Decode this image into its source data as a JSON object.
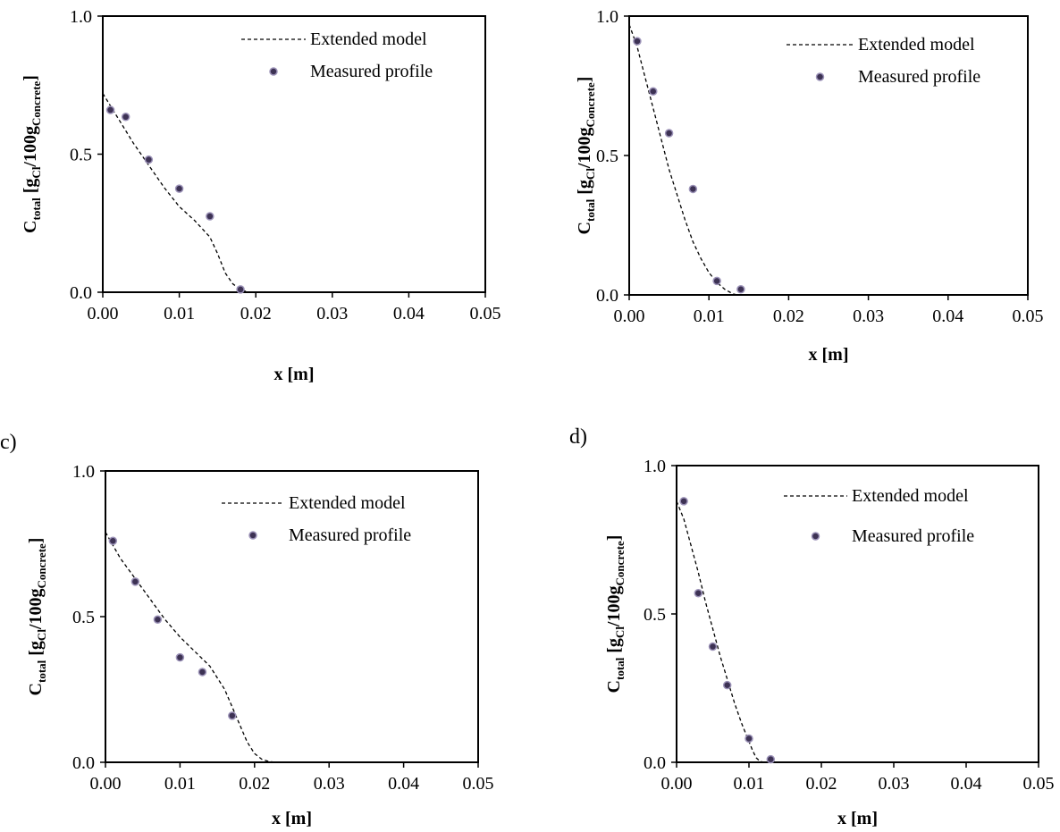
{
  "chart_data": [
    {
      "type": "scatter",
      "panel_label": "",
      "xlabel": "x [m]",
      "ylabel": {
        "c": "C",
        "c_sub": "total",
        "open": " [g",
        "cl_sub": "Cl",
        "mid": "/100g",
        "conc_sub": "Concrete",
        "close": "]"
      },
      "xlim": [
        0,
        0.05
      ],
      "ylim": [
        0,
        1.0
      ],
      "xticks": [
        "0.00",
        "0.01",
        "0.02",
        "0.03",
        "0.04",
        "0.05"
      ],
      "yticks": [
        "0.0",
        "0.5",
        "1.0"
      ],
      "legend": [
        "Extended model",
        "Measured profile"
      ],
      "legend_position": "top-right",
      "grid": false,
      "series": [
        {
          "name": "Extended model",
          "style": "dashed-line",
          "x": [
            0,
            0.002,
            0.004,
            0.006,
            0.008,
            0.01,
            0.012,
            0.014,
            0.015,
            0.016,
            0.017,
            0.018,
            0.019
          ],
          "y": [
            0.72,
            0.63,
            0.54,
            0.46,
            0.38,
            0.31,
            0.26,
            0.2,
            0.14,
            0.07,
            0.03,
            0.01,
            0.0
          ]
        },
        {
          "name": "Measured profile",
          "style": "marker",
          "x": [
            0.001,
            0.003,
            0.006,
            0.01,
            0.014,
            0.018
          ],
          "y": [
            0.66,
            0.635,
            0.48,
            0.375,
            0.275,
            0.01
          ]
        }
      ]
    },
    {
      "type": "scatter",
      "panel_label": "",
      "xlabel": "x [m]",
      "ylabel": {
        "c": "C",
        "c_sub": "total",
        "open": " [g",
        "cl_sub": "Cl",
        "mid": "/100g",
        "conc_sub": "Concrete",
        "close": "]"
      },
      "xlim": [
        0,
        0.05
      ],
      "ylim": [
        0,
        1.0
      ],
      "xticks": [
        "0.00",
        "0.01",
        "0.02",
        "0.03",
        "0.04",
        "0.05"
      ],
      "yticks": [
        "0.0",
        "0.5",
        "1.0"
      ],
      "legend": [
        "Extended model",
        "Measured profile"
      ],
      "legend_position": "top-right",
      "grid": false,
      "series": [
        {
          "name": "Extended model",
          "style": "dashed-line",
          "x": [
            0,
            0.001,
            0.002,
            0.003,
            0.004,
            0.005,
            0.006,
            0.007,
            0.008,
            0.009,
            0.01,
            0.011,
            0.012,
            0.013,
            0.0135
          ],
          "y": [
            0.97,
            0.89,
            0.78,
            0.67,
            0.56,
            0.45,
            0.36,
            0.27,
            0.19,
            0.13,
            0.08,
            0.045,
            0.02,
            0.004,
            0.0
          ]
        },
        {
          "name": "Measured profile",
          "style": "marker",
          "x": [
            0.001,
            0.003,
            0.005,
            0.008,
            0.011,
            0.014
          ],
          "y": [
            0.91,
            0.73,
            0.58,
            0.38,
            0.05,
            0.02
          ]
        }
      ]
    },
    {
      "type": "scatter",
      "panel_label": "c)",
      "xlabel": "x [m]",
      "ylabel": {
        "c": "C",
        "c_sub": "total",
        "open": " [g",
        "cl_sub": "Cl",
        "mid": "/100g",
        "conc_sub": "Concrete",
        "close": "]"
      },
      "xlim": [
        0,
        0.05
      ],
      "ylim": [
        0,
        1.0
      ],
      "xticks": [
        "0.00",
        "0.01",
        "0.02",
        "0.03",
        "0.04",
        "0.05"
      ],
      "yticks": [
        "0.0",
        "0.5",
        "1.0"
      ],
      "legend": [
        "Extended model",
        "Measured profile"
      ],
      "legend_position": "top-right",
      "grid": false,
      "series": [
        {
          "name": "Extended model",
          "style": "dashed-line",
          "x": [
            0,
            0.002,
            0.004,
            0.006,
            0.008,
            0.01,
            0.012,
            0.014,
            0.016,
            0.017,
            0.018,
            0.019,
            0.02,
            0.021,
            0.022,
            0.023
          ],
          "y": [
            0.79,
            0.7,
            0.63,
            0.56,
            0.49,
            0.43,
            0.38,
            0.33,
            0.25,
            0.19,
            0.13,
            0.07,
            0.03,
            0.01,
            0.002,
            0.0
          ]
        },
        {
          "name": "Measured profile",
          "style": "marker",
          "x": [
            0.001,
            0.004,
            0.007,
            0.01,
            0.013,
            0.017
          ],
          "y": [
            0.76,
            0.62,
            0.49,
            0.36,
            0.31,
            0.16
          ]
        }
      ]
    },
    {
      "type": "scatter",
      "panel_label": "d)",
      "xlabel": "x [m]",
      "ylabel": {
        "c": "C",
        "c_sub": "total",
        "open": " [g",
        "cl_sub": "Cl",
        "mid": "/100g",
        "conc_sub": "Concrete",
        "close": "]"
      },
      "xlim": [
        0,
        0.05
      ],
      "ylim": [
        0,
        1.0
      ],
      "xticks": [
        "0.00",
        "0.01",
        "0.02",
        "0.03",
        "0.04",
        "0.05"
      ],
      "yticks": [
        "0.0",
        "0.5",
        "1.0"
      ],
      "legend": [
        "Extended model",
        "Measured profile"
      ],
      "legend_position": "top-right",
      "grid": false,
      "series": [
        {
          "name": "Extended model",
          "style": "dashed-line",
          "x": [
            0,
            0.001,
            0.002,
            0.003,
            0.004,
            0.005,
            0.006,
            0.007,
            0.008,
            0.009,
            0.01,
            0.0105,
            0.011,
            0.0115,
            0.012
          ],
          "y": [
            0.88,
            0.82,
            0.73,
            0.64,
            0.54,
            0.45,
            0.36,
            0.28,
            0.2,
            0.13,
            0.07,
            0.04,
            0.015,
            0.004,
            0.0
          ]
        },
        {
          "name": "Measured profile",
          "style": "marker",
          "x": [
            0.001,
            0.003,
            0.005,
            0.007,
            0.01,
            0.013
          ],
          "y": [
            0.88,
            0.57,
            0.39,
            0.26,
            0.08,
            0.01
          ]
        }
      ]
    }
  ]
}
